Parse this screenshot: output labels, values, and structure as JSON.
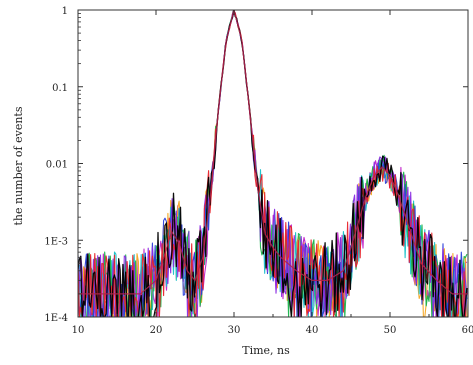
{
  "chart_data": {
    "type": "line",
    "title": "",
    "xlabel": "Time, ns",
    "ylabel": "the number of events",
    "xlim": [
      10,
      60
    ],
    "ylim": [
      0.0001,
      1
    ],
    "yscale": "log",
    "grid": false,
    "legend": "none",
    "x_ticks": [
      10,
      20,
      30,
      40,
      50,
      60
    ],
    "x_tick_labels": [
      "10",
      "20",
      "30",
      "40",
      "50",
      "60"
    ],
    "y_ticks": [
      0.0001,
      0.001,
      0.01,
      0.1,
      1
    ],
    "y_tick_labels": [
      "1E-4",
      "1E-3",
      "0.01",
      "0.1",
      "1"
    ],
    "series_colors": [
      "#000000",
      "#e8232a",
      "#2a3fd8",
      "#19b34a",
      "#c020c8",
      "#f5a623",
      "#18c0c8",
      "#8a2be2"
    ],
    "series": [
      {
        "x": [
          10,
          12,
          14,
          16,
          18,
          20,
          21,
          22,
          23,
          24,
          25,
          26,
          27,
          28,
          29,
          30,
          31,
          32,
          33,
          34,
          35,
          36,
          38,
          40,
          42,
          44,
          45,
          46,
          47,
          48,
          49,
          50,
          51,
          52,
          54,
          56,
          58,
          60
        ],
        "values": [
          0.0002,
          0.0002,
          0.0002,
          0.0002,
          0.0002,
          0.0003,
          0.0006,
          0.0013,
          0.0009,
          0.0004,
          0.0003,
          0.0006,
          0.004,
          0.05,
          0.4,
          1.0,
          0.4,
          0.05,
          0.005,
          0.0012,
          0.0008,
          0.0006,
          0.0004,
          0.0003,
          0.0003,
          0.0004,
          0.0008,
          0.0018,
          0.004,
          0.007,
          0.009,
          0.007,
          0.004,
          0.002,
          0.0005,
          0.0003,
          0.0002,
          0.0002
        ]
      }
    ]
  }
}
